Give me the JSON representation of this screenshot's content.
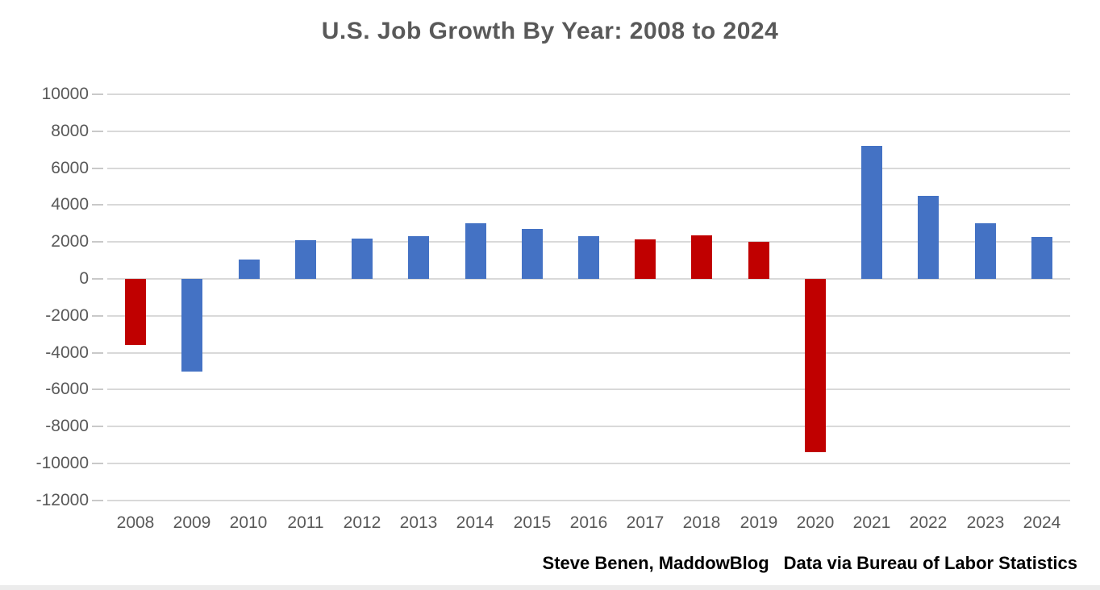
{
  "colors": {
    "bar_blue": "#4472C4",
    "bar_red": "#C00000",
    "title_text": "#595959",
    "axis_text": "#595959",
    "gridline": "#D9D9D9",
    "tick_mark": "#C9C9C9",
    "source_text": "#000000",
    "background": "#FFFFFF",
    "bottom_strip": "#ECECEC"
  },
  "chart_data": {
    "type": "bar",
    "title": "U.S. Job Growth By Year: 2008 to 2024",
    "xlabel": "",
    "ylabel": "",
    "categories": [
      "2008",
      "2009",
      "2010",
      "2011",
      "2012",
      "2013",
      "2014",
      "2015",
      "2016",
      "2017",
      "2018",
      "2019",
      "2020",
      "2021",
      "2022",
      "2023",
      "2024"
    ],
    "values": [
      -3600,
      -5000,
      1050,
      2100,
      2200,
      2300,
      3000,
      2700,
      2300,
      2150,
      2350,
      2000,
      -9400,
      7200,
      4500,
      3000,
      2250
    ],
    "bar_colors": [
      "#C00000",
      "#4472C4",
      "#4472C4",
      "#4472C4",
      "#4472C4",
      "#4472C4",
      "#4472C4",
      "#4472C4",
      "#4472C4",
      "#C00000",
      "#C00000",
      "#C00000",
      "#C00000",
      "#4472C4",
      "#4472C4",
      "#4472C4",
      "#4472C4"
    ],
    "ylim": [
      -12000,
      10000
    ],
    "ytick_interval": 2000,
    "yticks": [
      "10000",
      "8000",
      "6000",
      "4000",
      "2000",
      "0",
      "-2000",
      "-4000",
      "-6000",
      "-8000",
      "-10000",
      "-12000"
    ],
    "grid": true,
    "legend": "none",
    "source_note": {
      "left": "Steve Benen, MaddowBlog",
      "right": "Data via Bureau of Labor Statistics"
    }
  }
}
